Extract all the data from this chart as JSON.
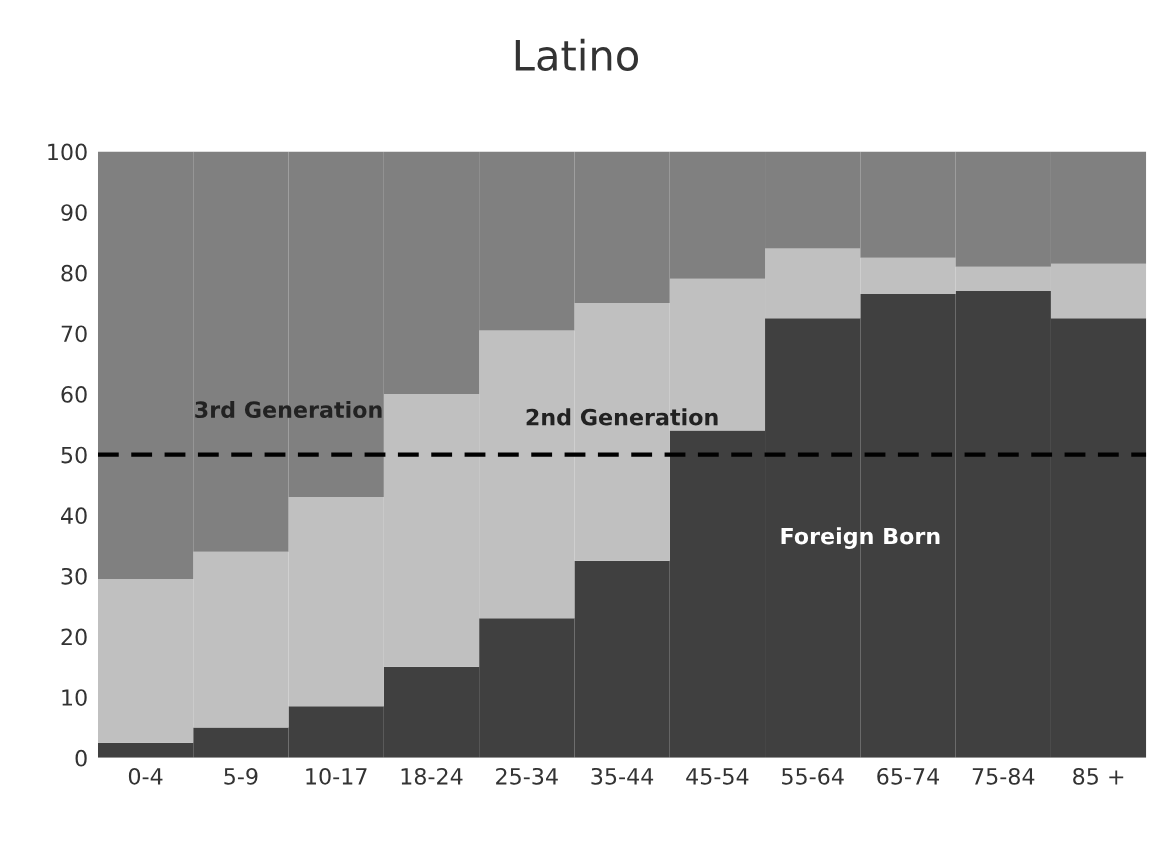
{
  "chart_data": {
    "type": "bar",
    "title": "Latino",
    "stacked": true,
    "categories": [
      "0-4",
      "5-9",
      "10-17",
      "18-24",
      "25-34",
      "35-44",
      "45-54",
      "55-64",
      "65-74",
      "75-84",
      "85 +"
    ],
    "series": [
      {
        "name": "Foreign Born",
        "color": "#404040",
        "values": [
          2.5,
          5,
          8.5,
          15,
          23,
          32.5,
          54,
          72.5,
          76.5,
          77,
          72.5
        ]
      },
      {
        "name": "2nd Generation",
        "color": "#c0c0c0",
        "values": [
          27,
          29,
          34.5,
          45,
          47.5,
          42.5,
          25,
          11.5,
          6,
          4,
          9
        ]
      },
      {
        "name": "3rd Generation",
        "color": "#808080",
        "values": [
          70.5,
          66,
          57,
          40,
          29.5,
          25,
          21,
          16,
          17.5,
          19,
          18.5
        ]
      }
    ],
    "ylim": [
      0,
      100
    ],
    "yticks": [
      0,
      10,
      20,
      30,
      40,
      50,
      60,
      70,
      80,
      90,
      100
    ],
    "ref_lines": [
      {
        "axis": "y",
        "value": 50,
        "color": "#000000",
        "line_style": "dashed"
      }
    ],
    "grid": false,
    "legend": false
  }
}
